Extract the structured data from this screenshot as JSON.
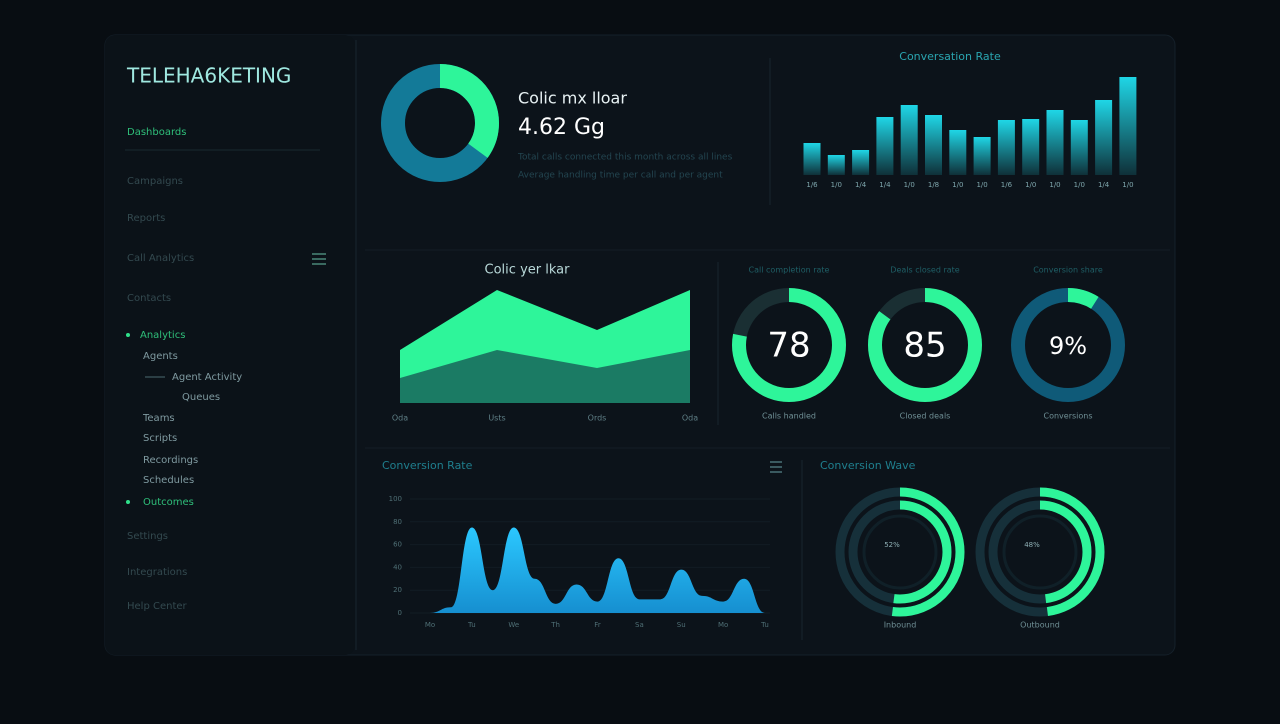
{
  "sidebar": {
    "brand": "TELEHA6KETING",
    "items": [
      "Dashboards",
      "Campaigns",
      "Reports",
      "Call Analytics",
      "Contacts",
      "Analytics",
      "Agents",
      "Agent Activity",
      "Queues",
      "Teams",
      "Scripts",
      "Recordings",
      "Schedules",
      "Outcomes",
      "Settings",
      "Integrations",
      "Help Center"
    ]
  },
  "summary": {
    "title": "Colic mx lloar",
    "value": "4.62 Gg",
    "notes": [
      "Total calls connected this month across all lines",
      "Average handling time per call and per agent"
    ],
    "donut_share": 35
  },
  "bar_panel": {
    "type": "bar",
    "title": "Conversation Rate",
    "categories": [
      "1/6",
      "1/0",
      "1/4",
      "1/4",
      "1/0",
      "1/8",
      "1/0",
      "1/0",
      "1/6",
      "1/0",
      "1/0",
      "1/0",
      "1/4",
      "1/0"
    ],
    "values": [
      32,
      20,
      25,
      58,
      70,
      60,
      45,
      38,
      55,
      56,
      65,
      55,
      75,
      98
    ],
    "color": "#1fd6e6"
  },
  "area_panel": {
    "type": "area",
    "title": "Colic yer lkar",
    "categories": [
      "Oda",
      "Usts",
      "Ords",
      "Oda"
    ],
    "series": [
      {
        "color": "#2ef59a",
        "values": [
          53,
          113,
          73,
          113
        ]
      },
      {
        "color": "#1a6e5e",
        "values": [
          25,
          53,
          35,
          53
        ]
      }
    ]
  },
  "gauges": [
    {
      "header": "Call completion rate",
      "value": 78,
      "caption": "Calls handled"
    },
    {
      "header": "Deals closed rate",
      "value": 85,
      "caption": "Closed deals"
    },
    {
      "header": "Conversion share",
      "value": 9,
      "value_label": "9%",
      "caption": "Conversions"
    }
  ],
  "wave_panel": {
    "type": "area",
    "title": "Conversion Rate",
    "color": "#22b8f0",
    "categories": [
      "Mo",
      null,
      "Tu",
      null,
      "We",
      null,
      "Th",
      null,
      "Fr",
      null,
      "Sa",
      null,
      "Su",
      null,
      "Mo",
      null,
      "Tu"
    ],
    "values": [
      0,
      5,
      75,
      20,
      75,
      30,
      8,
      25,
      10,
      48,
      12,
      12,
      38,
      15,
      10,
      30,
      0
    ],
    "ylim": [
      0,
      100
    ],
    "yticks": [
      0,
      20,
      40,
      60,
      80,
      100
    ]
  },
  "rings_panel": {
    "title": "Conversion Wave",
    "rings": [
      {
        "value": 52,
        "value_label": "52%",
        "caption": "Inbound"
      },
      {
        "value": 48,
        "value_label": "48%",
        "caption": "Outbound"
      }
    ]
  }
}
